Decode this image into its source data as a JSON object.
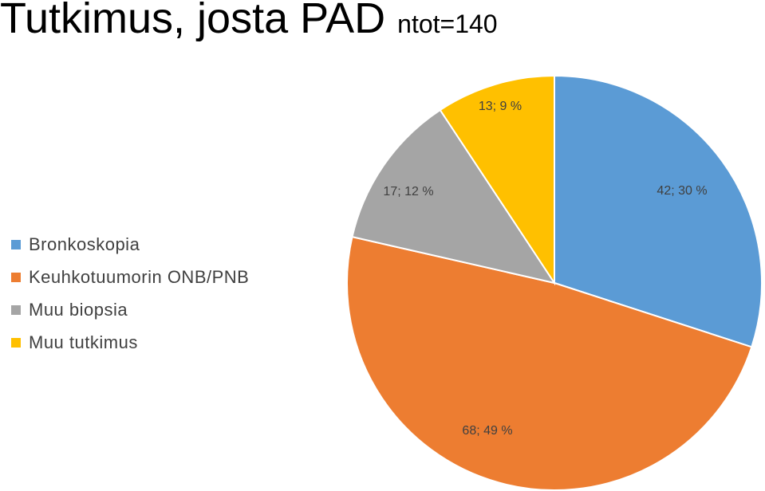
{
  "title": {
    "main": "Tutkimus, josta PAD ",
    "sub": "ntot=140"
  },
  "chart_data": {
    "type": "pie",
    "total": 140,
    "slices": [
      {
        "name": "Bronkoskopia",
        "value": 42,
        "percent": 30,
        "label": "42; 30 %",
        "color": "#5B9BD5"
      },
      {
        "name": "Keuhkotuumorin ONB/PNB",
        "value": 68,
        "percent": 49,
        "label": "68; 49 %",
        "color": "#ED7D31"
      },
      {
        "name": "Muu biopsia",
        "value": 17,
        "percent": 12,
        "label": "17; 12 %",
        "color": "#A5A5A5"
      },
      {
        "name": "Muu tutkimus",
        "value": 13,
        "percent": 9,
        "label": "13; 9 %",
        "color": "#FFC000"
      }
    ],
    "legend_position": "left"
  }
}
